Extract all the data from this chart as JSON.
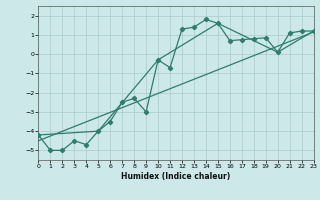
{
  "xlabel": "Humidex (Indice chaleur)",
  "bg_color": "#cce8e8",
  "grid_color": "#aacccc",
  "line_color": "#2e7d6e",
  "xlim": [
    0,
    23
  ],
  "ylim": [
    -5.5,
    2.5
  ],
  "xticks": [
    0,
    1,
    2,
    3,
    4,
    5,
    6,
    7,
    8,
    9,
    10,
    11,
    12,
    13,
    14,
    15,
    16,
    17,
    18,
    19,
    20,
    21,
    22,
    23
  ],
  "yticks": [
    -5,
    -4,
    -3,
    -2,
    -1,
    0,
    1,
    2
  ],
  "series1_x": [
    0,
    1,
    2,
    3,
    4,
    5,
    6,
    7,
    8,
    9,
    10,
    11,
    12,
    13,
    14,
    15,
    16,
    17,
    18,
    19,
    20,
    21,
    22,
    23
  ],
  "series1_y": [
    -4.2,
    -5.0,
    -5.0,
    -4.5,
    -4.7,
    -4.0,
    -3.5,
    -2.5,
    -2.3,
    -3.0,
    -0.3,
    -0.7,
    1.3,
    1.4,
    1.8,
    1.6,
    0.7,
    0.75,
    0.8,
    0.85,
    0.1,
    1.1,
    1.2,
    1.2
  ],
  "series2_x": [
    0,
    5,
    10,
    15,
    20,
    23
  ],
  "series2_y": [
    -4.2,
    -4.0,
    -0.3,
    1.6,
    0.1,
    1.2
  ],
  "series3_x": [
    0,
    23
  ],
  "series3_y": [
    -4.5,
    1.15
  ],
  "marker": "D",
  "marker_size": 2.2,
  "linewidth": 0.9
}
